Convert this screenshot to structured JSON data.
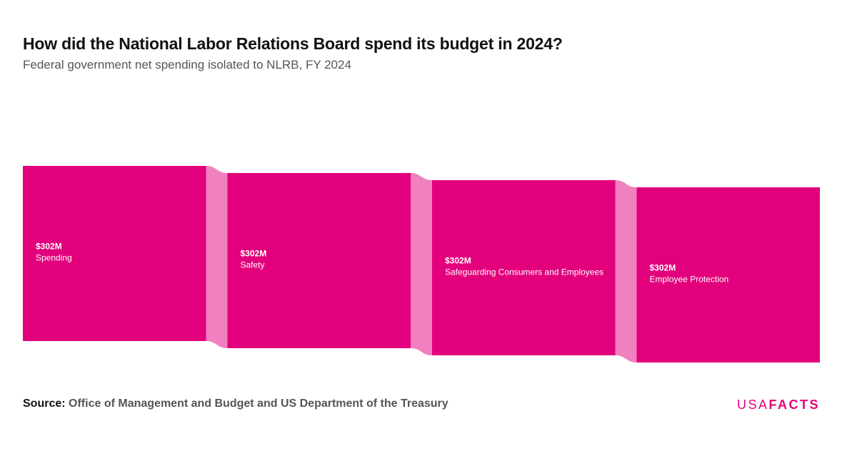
{
  "header": {
    "title": "How did the National Labor Relations Board spend its budget in 2024?",
    "subtitle": "Federal government net spending isolated to NLRB, FY 2024"
  },
  "footer": {
    "source_label": "Source:",
    "source_text": "Office of Management and Budget and US Department of the Treasury",
    "logo_usa": "USA",
    "logo_facts": "FACTS"
  },
  "colors": {
    "node": "#e3007c",
    "link": "#f080bf",
    "brand": "#e3007c"
  },
  "chart_data": {
    "type": "sankey",
    "unit": "USD",
    "nodes": [
      {
        "name": "Spending",
        "value": 302000000,
        "value_label": "$302M"
      },
      {
        "name": "Safety",
        "value": 302000000,
        "value_label": "$302M"
      },
      {
        "name": "Safeguarding Consumers and Employees",
        "value": 302000000,
        "value_label": "$302M"
      },
      {
        "name": "Employee Protection",
        "value": 302000000,
        "value_label": "$302M"
      }
    ],
    "links": [
      {
        "source": "Spending",
        "target": "Safety",
        "value": 302000000
      },
      {
        "source": "Safety",
        "target": "Safeguarding Consumers and Employees",
        "value": 302000000
      },
      {
        "source": "Safeguarding Consumers and Employees",
        "target": "Employee Protection",
        "value": 302000000
      }
    ]
  }
}
